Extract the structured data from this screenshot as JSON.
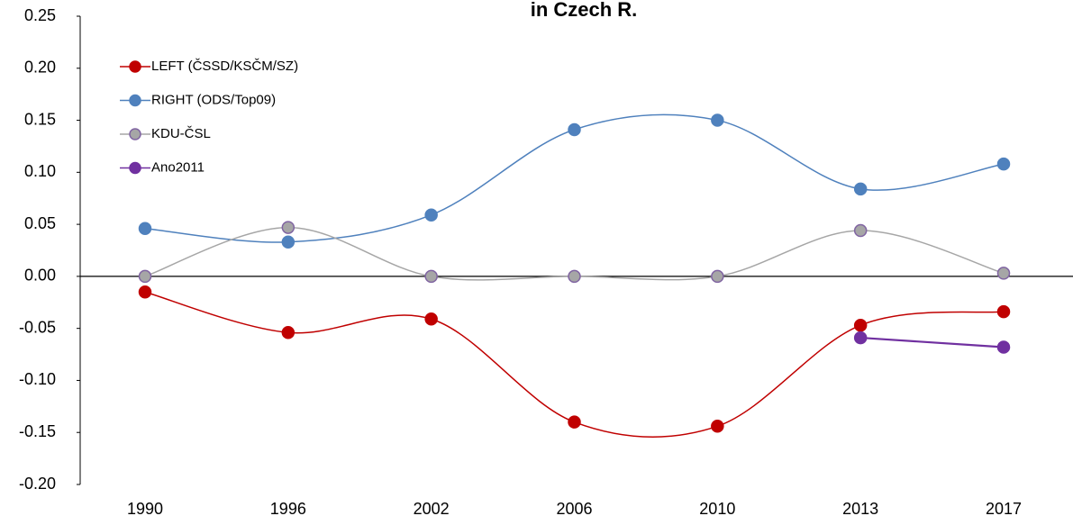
{
  "chart_data": {
    "type": "line",
    "title": "in Czech R.",
    "categories": [
      "1990",
      "1996",
      "2002",
      "2006",
      "2010",
      "2013",
      "2017"
    ],
    "series": [
      {
        "name": "LEFT (ČSSD/KSČM/SZ)",
        "color": "#c00000",
        "marker_edge": "#c00000",
        "smooth": true,
        "values": [
          -0.015,
          -0.054,
          -0.041,
          -0.14,
          -0.144,
          -0.047,
          -0.034
        ]
      },
      {
        "name": "RIGHT (ODS/Top09)",
        "color": "#4f81bd",
        "marker_edge": "#4f81bd",
        "smooth": true,
        "values": [
          0.046,
          0.033,
          0.059,
          0.141,
          0.15,
          0.084,
          0.108
        ]
      },
      {
        "name": "KDU-ČSL",
        "color": "#a6a6a6",
        "marker_edge": "#8064a2",
        "smooth": true,
        "values": [
          0,
          0.047,
          0,
          0,
          0,
          0.044,
          0.003
        ]
      },
      {
        "name": "Ano2011",
        "color": "#7030a0",
        "marker_edge": "#7030a0",
        "smooth": false,
        "values": [
          null,
          null,
          null,
          null,
          null,
          -0.059,
          -0.068
        ]
      }
    ],
    "ylim": [
      -0.2,
      0.25
    ],
    "yticks": [
      {
        "value": -0.2,
        "label": "-0.20"
      },
      {
        "value": -0.15,
        "label": "-0.15"
      },
      {
        "value": -0.1,
        "label": "-0.10"
      },
      {
        "value": -0.05,
        "label": "-0.05"
      },
      {
        "value": 0,
        "label": "0.00"
      },
      {
        "value": 0.05,
        "label": "0.05"
      },
      {
        "value": 0.1,
        "label": "0.10"
      },
      {
        "value": 0.15,
        "label": "0.15"
      },
      {
        "value": 0.2,
        "label": "0.20"
      },
      {
        "value": 0.25,
        "label": "0.25"
      }
    ],
    "grid": false,
    "legend": "upper-left"
  }
}
